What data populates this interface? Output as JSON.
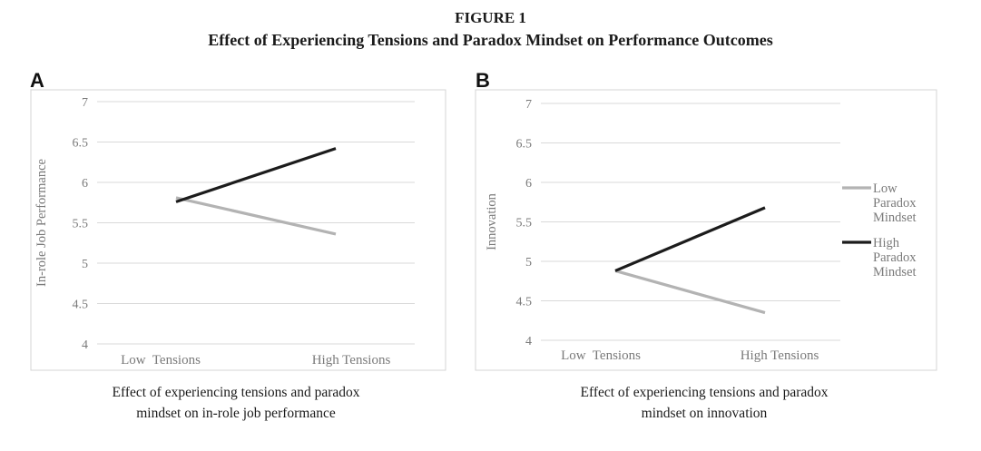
{
  "figure": {
    "label": "FIGURE 1",
    "title": "Effect of Experiencing Tensions and Paradox Mindset on Performance Outcomes"
  },
  "colors": {
    "low": "#b3b3b3",
    "high": "#1c1c1c",
    "grid": "#d9d9d9",
    "frame": "#d4d4d4"
  },
  "chart_data": [
    {
      "type": "line",
      "panel": "A",
      "title": "",
      "xlabel": "",
      "ylabel": "In-role Job Performance",
      "categories": [
        "Low  Tensions",
        "High Tensions"
      ],
      "yticks": [
        "4",
        "4.5",
        "5",
        "5.5",
        "6",
        "6.5",
        "7"
      ],
      "ylim": [
        4,
        7
      ],
      "grid": true,
      "legend": "none",
      "series": [
        {
          "name": "Low Paradox Mindset",
          "values": [
            5.81,
            5.36
          ]
        },
        {
          "name": "High Paradox Mindset",
          "values": [
            5.76,
            6.42
          ]
        }
      ],
      "caption": [
        "Effect of experiencing tensions and paradox",
        "mindset on in-role job performance"
      ]
    },
    {
      "type": "line",
      "panel": "B",
      "title": "",
      "xlabel": "",
      "ylabel": "Innovation",
      "categories": [
        "Low  Tensions",
        "High Tensions"
      ],
      "yticks": [
        "4",
        "4.5",
        "5",
        "5.5",
        "6",
        "6.5",
        "7"
      ],
      "ylim": [
        4,
        7
      ],
      "grid": true,
      "legend": "right",
      "series": [
        {
          "name": "Low Paradox Mindset",
          "values": [
            4.88,
            4.35
          ]
        },
        {
          "name": "High Paradox Mindset",
          "values": [
            4.88,
            5.68
          ]
        }
      ],
      "legend_entries": [
        [
          "Low",
          "Paradox",
          "Mindset"
        ],
        [
          "High",
          "Paradox",
          "Mindset"
        ]
      ],
      "caption": [
        "Effect of experiencing tensions and paradox",
        "mindset on innovation"
      ]
    }
  ]
}
